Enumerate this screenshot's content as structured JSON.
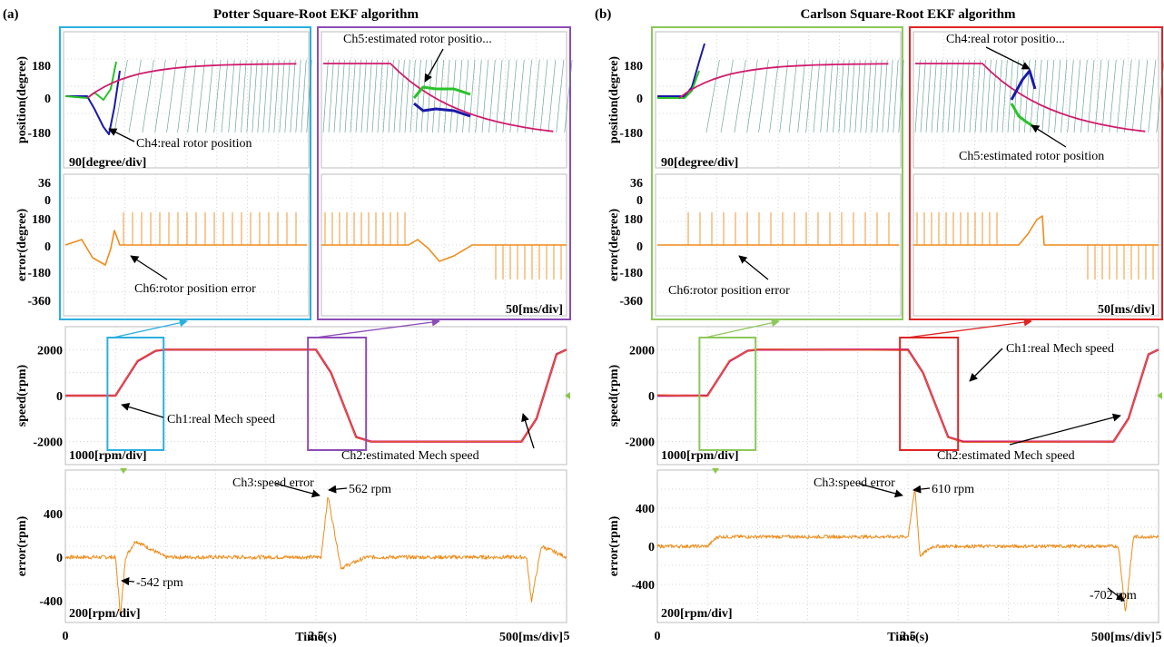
{
  "colors": {
    "real_position": "#1a1aa8",
    "estimated_position": "#29c229",
    "position_err": "#ef8c1a",
    "speed_real": "#d21a6e",
    "speed_est": "#e2602a",
    "speed_err": "#ef8c1a",
    "grid": "#c9c9c9",
    "box_a1": "#2ab0e0",
    "box_a2": "#8c4cb8",
    "box_b1": "#8cc85a",
    "box_b2": "#e02424",
    "green_tick": "#8cc84a",
    "hatch": "#4a8f80"
  },
  "panels": [
    {
      "label": "(a)",
      "title": "Potter Square-Root EKF algorithm",
      "pos_ylabel": "position(degree)",
      "pos_ticks": [
        "180",
        "0",
        "-180"
      ],
      "pos_scale": "90[degree/div]",
      "err_ylabel": "error(degree)",
      "err_ticks": [
        "36",
        "0",
        "180",
        "0",
        "-180",
        "-360"
      ],
      "time_scale_top": "50[ms/div]",
      "speed_ylabel": "speed(rpm)",
      "speed_ticks": [
        "2000",
        "0",
        "-2000"
      ],
      "speed_scale": "1000[rpm/div]",
      "serr_ylabel": "error(rpm)",
      "serr_ticks": [
        "400",
        "0",
        "-400"
      ],
      "serr_scale": "200[rpm/div]",
      "x_ticks": [
        "0",
        "2.5",
        "5"
      ],
      "xlabel": "Time(s)",
      "time_scale_bottom": "500[ms/div]",
      "ann": {
        "ch4": "Ch4:real rotor position",
        "ch5": "Ch5:estimated rotor positio...",
        "ch6": "Ch6:rotor position error",
        "ch1": "Ch1:real Mech speed",
        "ch2": "Ch2:estimated Mech speed",
        "ch3": "Ch3:speed error",
        "peak": "562 rpm",
        "trough": "-542 rpm"
      }
    },
    {
      "label": "(b)",
      "title": "Carlson Square-Root EKF algorithm",
      "pos_ylabel": "position(degree)",
      "pos_ticks": [
        "180",
        "0",
        "-180"
      ],
      "pos_scale": "90[degree/div]",
      "err_ylabel": "error(degree)",
      "err_ticks": [
        "36",
        "0",
        "180",
        "0",
        "-180",
        "-360"
      ],
      "time_scale_top": "50[ms/div]",
      "speed_ylabel": "speed(rpm)",
      "speed_ticks": [
        "2000",
        "0",
        "-2000"
      ],
      "speed_scale": "1000[rpm/div]",
      "serr_ylabel": "error(rpm)",
      "serr_ticks": [
        "400",
        "0",
        "-400"
      ],
      "serr_scale": "200[rpm/div]",
      "x_ticks": [
        "0",
        "2.5",
        "5"
      ],
      "xlabel": "Time(s)",
      "time_scale_bottom": "500[ms/div]",
      "ann": {
        "ch4": "Ch4:real rotor positio...",
        "ch5": "Ch5:estimated rotor position",
        "ch6": "Ch6:rotor position error",
        "ch1": "Ch1:real Mech speed",
        "ch2": "Ch2:estimated Mech speed",
        "ch3": "Ch3:speed error",
        "peak": "610 rpm",
        "trough": "-702 rpm"
      }
    }
  ],
  "chart_data": [
    {
      "type": "line",
      "panel": "(a) speed",
      "x": [
        0,
        0.5,
        0.72,
        0.9,
        1.0,
        2.5,
        2.65,
        2.9,
        3.05,
        4.55,
        4.7,
        4.9,
        5.0
      ],
      "ylabel": "speed(rpm)",
      "xlabel": "Time(s)",
      "xlim": [
        0,
        5
      ],
      "ylim": [
        -3000,
        3000
      ],
      "series": [
        {
          "name": "Ch1:real Mech speed",
          "values": [
            0,
            0,
            1500,
            1950,
            2000,
            2000,
            1000,
            -1800,
            -2000,
            -2000,
            -1000,
            1800,
            2000
          ]
        },
        {
          "name": "Ch2:estimated Mech speed",
          "values": [
            0,
            0,
            1500,
            1950,
            2000,
            2000,
            1000,
            -1800,
            -2000,
            -2000,
            -1000,
            1800,
            2000
          ]
        }
      ]
    },
    {
      "type": "line",
      "panel": "(a) speed error",
      "x": [
        0,
        0.5,
        0.55,
        0.6,
        0.7,
        1.0,
        2.55,
        2.62,
        2.75,
        3.0,
        4.6,
        4.65,
        4.75,
        5.0
      ],
      "ylabel": "error(rpm)",
      "xlabel": "Time(s)",
      "xlim": [
        0,
        5
      ],
      "ylim": [
        -600,
        800
      ],
      "series": [
        {
          "name": "Ch3:speed error",
          "values": [
            0,
            0,
            -542,
            0,
            150,
            0,
            0,
            562,
            -100,
            0,
            0,
            -400,
            100,
            0
          ]
        }
      ]
    },
    {
      "type": "line",
      "panel": "(b) speed",
      "x": [
        0,
        0.5,
        0.72,
        0.9,
        1.0,
        2.5,
        2.65,
        2.9,
        3.05,
        4.55,
        4.7,
        4.9,
        5.0
      ],
      "ylabel": "speed(rpm)",
      "xlabel": "Time(s)",
      "xlim": [
        0,
        5
      ],
      "ylim": [
        -3000,
        3000
      ],
      "series": [
        {
          "name": "Ch1:real Mech speed",
          "values": [
            0,
            0,
            1500,
            1950,
            2000,
            2000,
            1000,
            -1800,
            -2000,
            -2000,
            -1000,
            1800,
            2000
          ]
        },
        {
          "name": "Ch2:estimated Mech speed",
          "values": [
            0,
            0,
            1500,
            1950,
            2000,
            2000,
            1000,
            -1800,
            -2000,
            -2000,
            -1000,
            1800,
            2000
          ]
        }
      ]
    },
    {
      "type": "line",
      "panel": "(b) speed error",
      "x": [
        0,
        0.5,
        0.6,
        2.5,
        2.57,
        2.62,
        2.75,
        3.0,
        4.6,
        4.67,
        4.75,
        5.0
      ],
      "ylabel": "error(rpm)",
      "xlabel": "Time(s)",
      "xlim": [
        0,
        5
      ],
      "ylim": [
        -800,
        800
      ],
      "series": [
        {
          "name": "Ch3:speed error",
          "values": [
            0,
            0,
            100,
            100,
            610,
            -100,
            0,
            0,
            0,
            -702,
            100,
            100
          ]
        }
      ]
    }
  ]
}
